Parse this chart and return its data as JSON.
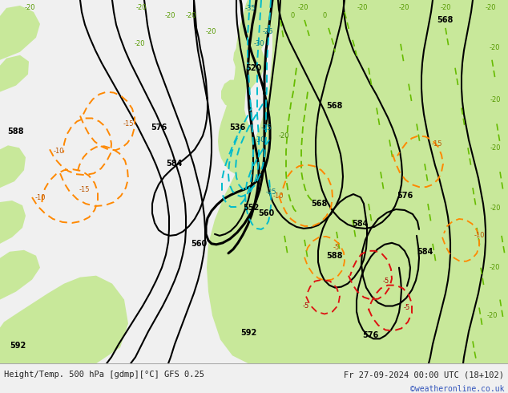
{
  "title_left": "Height/Temp. 500 hPa [gdmp][°C] GFS 0.25",
  "title_right": "Fr 27-09-2024 00:00 UTC (18+102)",
  "watermark": "©weatheronline.co.uk",
  "bg_ocean": "#d8d8d8",
  "bg_land_green": "#c8e89a",
  "bg_land_dark": "#b0d878",
  "bottom_bar": "#f0f0f0",
  "text_color": "#222222",
  "watermark_color": "#3355bb",
  "figsize": [
    6.34,
    4.9
  ],
  "dpi": 100
}
